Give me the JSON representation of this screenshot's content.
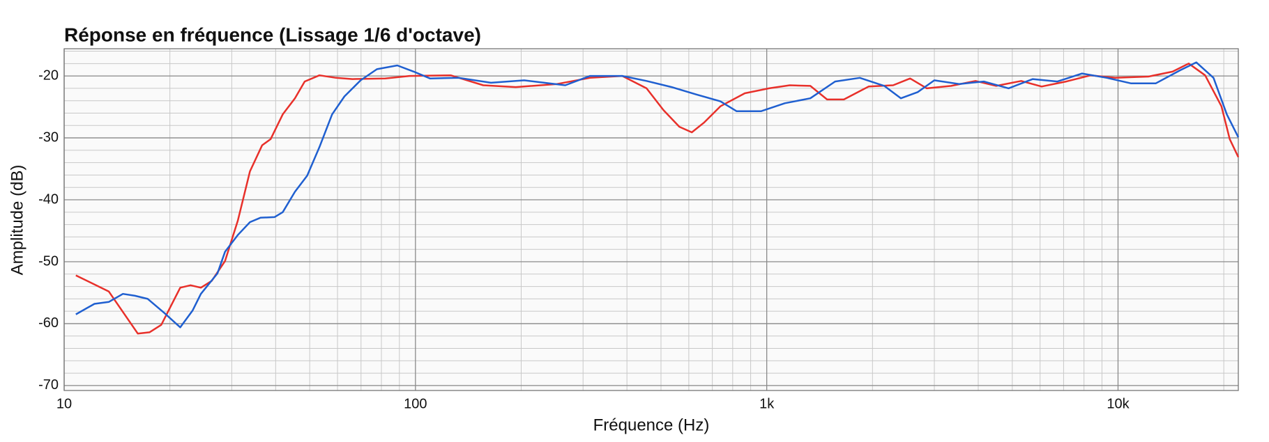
{
  "chart_data": {
    "type": "line",
    "title": "Réponse en fréquence (Lissage 1/6 d'octave)",
    "x_label": "Fréquence (Hz)",
    "y_label": "Amplitude (dB)",
    "x_scale": "log",
    "grid": true,
    "minor_grid": true,
    "xlim": [
      10,
      22000
    ],
    "ylim": [
      -70.8,
      -15.6
    ],
    "xticks": [
      10,
      100,
      {
        "value": 1000,
        "label": "1k"
      },
      {
        "value": 10000,
        "label": "10k"
      }
    ],
    "yticks": [
      -70,
      -60,
      -50,
      -40,
      -30,
      -20
    ],
    "series": [
      {
        "color": "#e8302a",
        "x": [
          10.8,
          13.4,
          16.2,
          17.5,
          18.9,
          21.4,
          22.9,
          24.5,
          26.3,
          28.7,
          31.2,
          33.8,
          36.6,
          38.7,
          41.9,
          45.4,
          48.4,
          53.3,
          59.4,
          66.2,
          82,
          96.2,
          126,
          156,
          193,
          253,
          314,
          388,
          455,
          508,
          564,
          612,
          664,
          738,
          866,
          1015,
          1163,
          1331,
          1485,
          1658,
          1950,
          2290,
          2560,
          2855,
          3350,
          3930,
          4500,
          5300,
          6060,
          7120,
          8360,
          9820,
          12200,
          14300,
          15900,
          17700,
          19700,
          20800,
          22000
        ],
        "values": [
          -52.2,
          -54.8,
          -61.6,
          -61.4,
          -60.2,
          -54.2,
          -53.8,
          -54.2,
          -53.1,
          -49.9,
          -43.4,
          -35.4,
          -31.2,
          -30.2,
          -26.2,
          -23.6,
          -20.9,
          -19.9,
          -20.3,
          -20.5,
          -20.4,
          -20,
          -19.9,
          -21.5,
          -21.8,
          -21.3,
          -20.3,
          -20,
          -22,
          -25.5,
          -28.2,
          -29.1,
          -27.5,
          -24.9,
          -22.8,
          -22,
          -21.5,
          -21.6,
          -23.8,
          -23.8,
          -21.7,
          -21.5,
          -20.4,
          -22,
          -21.6,
          -20.8,
          -21.6,
          -20.8,
          -21.7,
          -20.9,
          -19.9,
          -20.3,
          -20.1,
          -19.3,
          -18,
          -19.9,
          -24.9,
          -30.2,
          -33.1
        ]
      },
      {
        "color": "#1f5fd0",
        "x": [
          10.8,
          12.2,
          13.4,
          14.7,
          15.9,
          17.3,
          19.3,
          21.4,
          23.2,
          24.5,
          27.3,
          28.7,
          31.2,
          33.8,
          36.2,
          39.7,
          41.9,
          45.4,
          49.2,
          53.3,
          57.9,
          62.8,
          69.8,
          77.7,
          88.8,
          98.9,
          110,
          133,
          164,
          204,
          267,
          314,
          388,
          455,
          536,
          631,
          738,
          821,
          963,
          1126,
          1331,
          1565,
          1840,
          2160,
          2410,
          2690,
          3000,
          3530,
          4150,
          4880,
          5720,
          6720,
          7900,
          9290,
          10900,
          12800,
          15000,
          16700,
          18700,
          20400,
          22000
        ],
        "values": [
          -58.5,
          -56.8,
          -56.5,
          -55.2,
          -55.5,
          -56,
          -58.3,
          -60.6,
          -57.9,
          -55.2,
          -51.9,
          -48.4,
          -45.7,
          -43.6,
          -42.9,
          -42.8,
          -42,
          -38.7,
          -36.1,
          -31.5,
          -26.2,
          -23.3,
          -20.7,
          -18.9,
          -18.3,
          -19.3,
          -20.4,
          -20.3,
          -21.1,
          -20.7,
          -21.5,
          -20,
          -20,
          -20.8,
          -21.8,
          -23,
          -24.1,
          -25.7,
          -25.7,
          -24.4,
          -23.6,
          -20.9,
          -20.3,
          -21.6,
          -23.6,
          -22.6,
          -20.7,
          -21.3,
          -20.9,
          -22,
          -20.5,
          -20.9,
          -19.6,
          -20.3,
          -21.2,
          -21.2,
          -19.1,
          -17.8,
          -20.3,
          -26.2,
          -29.9
        ]
      }
    ]
  }
}
